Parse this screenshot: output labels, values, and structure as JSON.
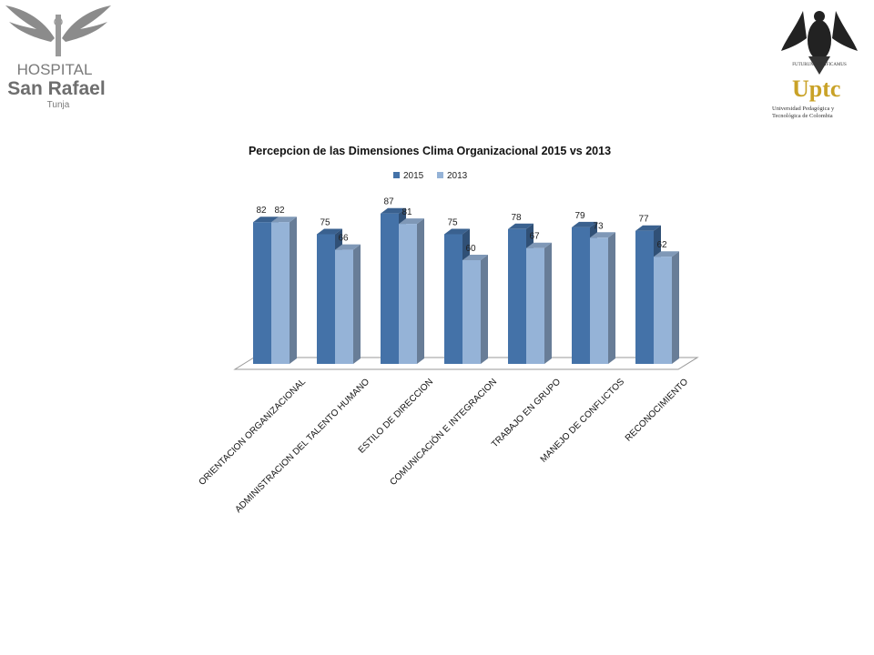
{
  "logos": {
    "left": {
      "line1": "HOSPITAL",
      "line2": "San Rafael",
      "line3": "Tunja"
    },
    "right": {
      "name": "Uptc",
      "subtitle1": "Universidad Pedagógica y",
      "subtitle2": "Tecnológica de Colombia",
      "motto": "FUTURUM AEDIFICAMUS"
    }
  },
  "chart_data": {
    "type": "bar",
    "title": "Percepcion de las Dimensiones Clima Organizacional 2015  vs 2013",
    "categories": [
      "ORIENTACION ORGANIZACIONAL",
      "ADMINISTRACION DEL TALENTO HUMANO",
      "ESTILO DE DIRECCION",
      "COMUNICACIÓN E INTEGRACION",
      "TRABAJO EN GRUPO",
      "MANEJO DE CONFLICTOS",
      "RECONOCIMIENTO"
    ],
    "series": [
      {
        "name": "2015",
        "values": [
          82,
          75,
          87,
          75,
          78,
          79,
          77
        ],
        "color": "#4472a8"
      },
      {
        "name": "2013",
        "values": [
          82,
          66,
          81,
          60,
          67,
          73,
          62
        ],
        "color": "#95b3d7"
      }
    ],
    "ylim": [
      0,
      100
    ],
    "legend_position": "top",
    "grid": false
  }
}
